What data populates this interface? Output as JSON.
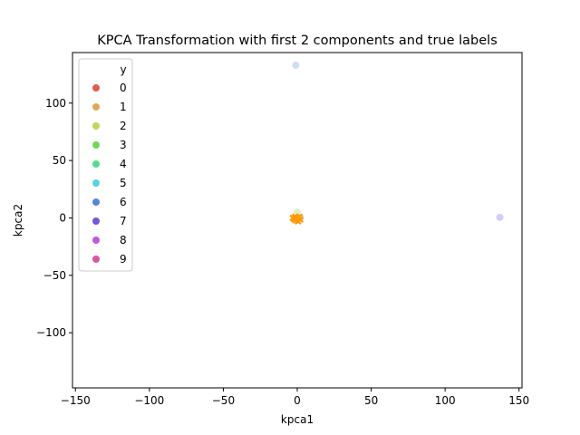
{
  "chart_data": {
    "type": "scatter",
    "title": "KPCA Transformation with first 2 components and true labels",
    "xlabel": "kpca1",
    "ylabel": "kpca2",
    "xlim": [
      -152,
      152
    ],
    "ylim": [
      -148,
      144
    ],
    "xticks": [
      -150,
      -100,
      -50,
      0,
      50,
      100,
      150
    ],
    "xtick_labels": [
      "−150",
      "−100",
      "−50",
      "0",
      "50",
      "100",
      "150"
    ],
    "yticks": [
      -100,
      -50,
      0,
      50,
      100
    ],
    "ytick_labels": [
      "−100",
      "−50",
      "0",
      "50",
      "100"
    ],
    "grid": false,
    "legend": {
      "title": "y",
      "placement": "top-left",
      "entries": [
        {
          "label": "0",
          "color": "#db5f57"
        },
        {
          "label": "1",
          "color": "#dbab57"
        },
        {
          "label": "2",
          "color": "#bfd957"
        },
        {
          "label": "3",
          "color": "#6fd957"
        },
        {
          "label": "4",
          "color": "#57db8a"
        },
        {
          "label": "5",
          "color": "#57d3db"
        },
        {
          "label": "6",
          "color": "#5785db"
        },
        {
          "label": "7",
          "color": "#7257db"
        },
        {
          "label": "8",
          "color": "#c157db"
        },
        {
          "label": "9",
          "color": "#db5799"
        }
      ]
    },
    "points": [
      {
        "x": -1,
        "y": 133,
        "color": "#c9d9f5",
        "label": "6"
      },
      {
        "x": 137,
        "y": 0.5,
        "color": "#cfc9f3",
        "label": "7"
      },
      {
        "x": 0,
        "y": 5,
        "color": "#e3ecb8",
        "label": "2"
      },
      {
        "x": 2,
        "y": 0,
        "color": "#ecc2bf",
        "label": "0"
      },
      {
        "x": -1,
        "y": -2,
        "color": "#e8d3b0",
        "label": "1"
      },
      {
        "x": 0.5,
        "y": 1,
        "color": "#c8efd6",
        "label": "4"
      }
    ],
    "overlay_markers": {
      "marker": "x",
      "color": "#ff9900",
      "points": [
        {
          "x": -3,
          "y": 0
        },
        {
          "x": -1.5,
          "y": 1
        },
        {
          "x": 0,
          "y": 0
        },
        {
          "x": 1.5,
          "y": 1
        },
        {
          "x": 2,
          "y": -1.5
        },
        {
          "x": 0.5,
          "y": -3
        },
        {
          "x": -1,
          "y": -2
        },
        {
          "x": -2,
          "y": -1
        }
      ]
    }
  }
}
